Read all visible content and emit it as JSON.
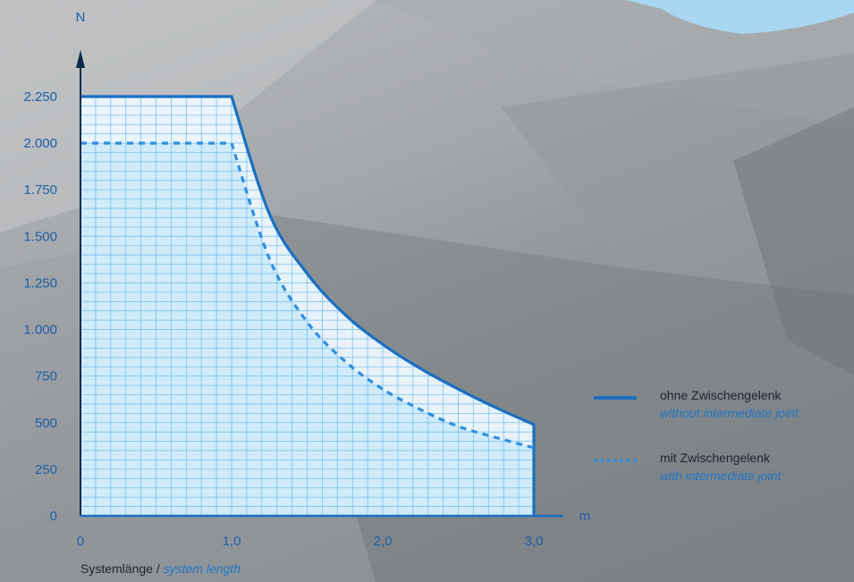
{
  "chart_data": {
    "type": "area",
    "xlabel": {
      "de": "Systemlänge",
      "separator": " / ",
      "en": "system length"
    },
    "x_unit": "m",
    "y_unit": "N",
    "xlim": [
      0,
      3.0
    ],
    "ylim": [
      0,
      2250
    ],
    "x_ticks": [
      {
        "value": 0,
        "label": "0"
      },
      {
        "value": 1.0,
        "label": "1,0"
      },
      {
        "value": 2.0,
        "label": "2,0"
      },
      {
        "value": 3.0,
        "label": "3,0"
      }
    ],
    "y_ticks": [
      {
        "value": 0,
        "label": "0"
      },
      {
        "value": 250,
        "label": "250"
      },
      {
        "value": 500,
        "label": "500"
      },
      {
        "value": 750,
        "label": "750"
      },
      {
        "value": 1000,
        "label": "1.000"
      },
      {
        "value": 1250,
        "label": "1.250"
      },
      {
        "value": 1500,
        "label": "1.500"
      },
      {
        "value": 1750,
        "label": "1.750"
      },
      {
        "value": 2000,
        "label": "2.000"
      },
      {
        "value": 2250,
        "label": "2.250"
      }
    ],
    "grid": true,
    "legend_position": "right",
    "series": [
      {
        "name": "ohne Zwischengelenk",
        "name_en": "without intermediate joint",
        "style": "solid",
        "color": "#1a6fbf",
        "x": [
          0,
          1.0,
          1.25,
          1.5,
          1.75,
          2.0,
          2.25,
          2.5,
          2.75,
          3.0
        ],
        "y": [
          2250,
          2250,
          1620,
          1300,
          1080,
          920,
          790,
          680,
          580,
          490
        ]
      },
      {
        "name": "mit Zwischengelenk",
        "name_en": "with intermediate joint",
        "style": "dotted",
        "color": "#2e8ee0",
        "x": [
          0,
          1.0,
          1.25,
          1.5,
          1.75,
          2.0,
          2.25,
          2.5,
          2.75,
          3.0
        ],
        "y": [
          2000,
          2000,
          1380,
          1040,
          830,
          680,
          570,
          480,
          420,
          365
        ]
      }
    ]
  }
}
